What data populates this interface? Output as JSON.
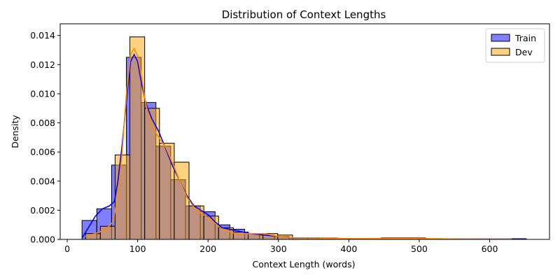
{
  "chart_data": {
    "type": "histogram",
    "title": "Distribution of Context Lengths",
    "xlabel": "Context Length (words)",
    "ylabel": "Density",
    "xlim": [
      -10,
      685
    ],
    "ylim": [
      0,
      0.0148
    ],
    "xticks": [
      0,
      100,
      200,
      300,
      400,
      500,
      600
    ],
    "yticks": [
      0.0,
      0.002,
      0.004,
      0.006,
      0.008,
      0.01,
      0.012,
      0.014
    ],
    "ytick_labels": [
      "0.000",
      "0.002",
      "0.004",
      "0.006",
      "0.008",
      "0.010",
      "0.012",
      "0.014"
    ],
    "legend_position": "top-right",
    "grid": false,
    "series": [
      {
        "name": "Train",
        "color": "#0000ff",
        "alpha": 0.5,
        "bins": [
          [
            21,
            42,
            0.0013
          ],
          [
            42,
            63,
            0.0021
          ],
          [
            63,
            84,
            0.0051
          ],
          [
            84,
            105,
            0.0125
          ],
          [
            105,
            126,
            0.0094
          ],
          [
            126,
            147,
            0.0064
          ],
          [
            147,
            168,
            0.0041
          ],
          [
            168,
            189,
            0.0023
          ],
          [
            189,
            210,
            0.0019
          ],
          [
            210,
            231,
            0.001
          ],
          [
            231,
            252,
            0.0007
          ],
          [
            252,
            273,
            0.0004
          ],
          [
            273,
            294,
            0.0003
          ],
          [
            294,
            315,
            0.0002
          ],
          [
            315,
            336,
            0.0001
          ],
          [
            336,
            357,
            0.0001
          ],
          [
            357,
            378,
            0.0001
          ],
          [
            378,
            399,
            5e-05
          ],
          [
            399,
            420,
            4e-05
          ],
          [
            420,
            441,
            3e-05
          ],
          [
            441,
            462,
            5e-05
          ],
          [
            462,
            483,
            5e-05
          ],
          [
            483,
            504,
            5e-05
          ],
          [
            504,
            525,
            3e-05
          ],
          [
            525,
            546,
            2e-05
          ],
          [
            546,
            567,
            2e-05
          ],
          [
            567,
            588,
            2e-05
          ],
          [
            588,
            609,
            2e-05
          ],
          [
            609,
            630,
            2e-05
          ],
          [
            630,
            652,
            5e-05
          ]
        ],
        "kde": [
          [
            21,
            0.0001
          ],
          [
            30,
            0.0008
          ],
          [
            40,
            0.0016
          ],
          [
            50,
            0.0021
          ],
          [
            60,
            0.0023
          ],
          [
            67,
            0.0026
          ],
          [
            72,
            0.004
          ],
          [
            78,
            0.0065
          ],
          [
            84,
            0.0095
          ],
          [
            90,
            0.0122
          ],
          [
            95,
            0.0127
          ],
          [
            100,
            0.0122
          ],
          [
            106,
            0.0106
          ],
          [
            112,
            0.0093
          ],
          [
            120,
            0.0083
          ],
          [
            130,
            0.0074
          ],
          [
            140,
            0.0062
          ],
          [
            150,
            0.005
          ],
          [
            160,
            0.004
          ],
          [
            170,
            0.003
          ],
          [
            180,
            0.0023
          ],
          [
            190,
            0.002
          ],
          [
            200,
            0.0017
          ],
          [
            210,
            0.0012
          ],
          [
            220,
            0.0008
          ],
          [
            240,
            0.0006
          ],
          [
            260,
            0.0004
          ],
          [
            280,
            0.0003
          ],
          [
            300,
            0.0002
          ],
          [
            320,
            0.0001
          ],
          [
            350,
            0.0001
          ],
          [
            400,
            5e-05
          ],
          [
            450,
            4e-05
          ],
          [
            500,
            4e-05
          ],
          [
            550,
            2e-05
          ],
          [
            600,
            2e-05
          ],
          [
            652,
            2e-05
          ]
        ]
      },
      {
        "name": "Dev",
        "color": "#ffa500",
        "alpha": 0.5,
        "bins": [
          [
            26,
            47,
            0.0004
          ],
          [
            47,
            68,
            0.0009
          ],
          [
            68,
            89,
            0.0058
          ],
          [
            89,
            110,
            0.0139
          ],
          [
            110,
            131,
            0.009
          ],
          [
            131,
            152,
            0.0066
          ],
          [
            152,
            173,
            0.0053
          ],
          [
            173,
            194,
            0.0023
          ],
          [
            194,
            215,
            0.0016
          ],
          [
            215,
            236,
            0.0008
          ],
          [
            236,
            257,
            0.0005
          ],
          [
            257,
            278,
            0.0004
          ],
          [
            278,
            299,
            0.0004
          ],
          [
            299,
            320,
            0.0003
          ],
          [
            320,
            341,
            0.0001
          ],
          [
            341,
            362,
            0.0001
          ],
          [
            362,
            383,
            0.0001
          ],
          [
            383,
            404,
            5e-05
          ],
          [
            404,
            425,
            5e-05
          ],
          [
            425,
            446,
            5e-05
          ],
          [
            446,
            467,
            0.0001
          ],
          [
            467,
            488,
            0.0001
          ],
          [
            488,
            509,
            0.0001
          ],
          [
            509,
            530,
            5e-05
          ],
          [
            530,
            551,
            3e-05
          ],
          [
            551,
            572,
            3e-05
          ],
          [
            572,
            593,
            3e-05
          ],
          [
            593,
            614,
            3e-05
          ],
          [
            614,
            632,
            3e-05
          ]
        ],
        "kde": [
          [
            26,
            0.0002
          ],
          [
            40,
            0.0004
          ],
          [
            55,
            0.0007
          ],
          [
            65,
            0.0012
          ],
          [
            72,
            0.003
          ],
          [
            78,
            0.006
          ],
          [
            84,
            0.01
          ],
          [
            90,
            0.0127
          ],
          [
            95,
            0.0131
          ],
          [
            100,
            0.0126
          ],
          [
            106,
            0.011
          ],
          [
            112,
            0.0092
          ],
          [
            120,
            0.0078
          ],
          [
            130,
            0.007
          ],
          [
            140,
            0.0063
          ],
          [
            150,
            0.0052
          ],
          [
            160,
            0.004
          ],
          [
            170,
            0.0029
          ],
          [
            180,
            0.0022
          ],
          [
            190,
            0.0018
          ],
          [
            200,
            0.0015
          ],
          [
            210,
            0.0011
          ],
          [
            220,
            0.0007
          ],
          [
            240,
            0.0004
          ],
          [
            260,
            0.0004
          ],
          [
            280,
            0.0004
          ],
          [
            300,
            0.0002
          ],
          [
            320,
            0.0001
          ],
          [
            350,
            0.0001
          ],
          [
            400,
            5e-05
          ],
          [
            450,
            6e-05
          ],
          [
            500,
            6e-05
          ],
          [
            550,
            3e-05
          ],
          [
            600,
            2e-05
          ],
          [
            632,
            2e-05
          ]
        ]
      }
    ]
  }
}
